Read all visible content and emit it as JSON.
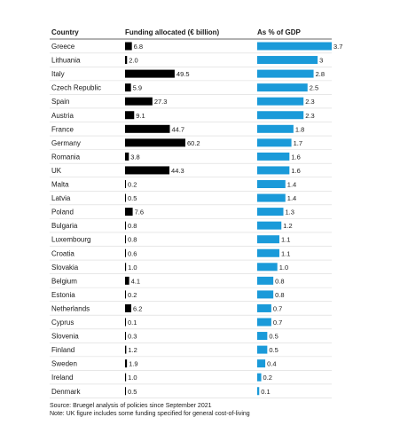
{
  "chart_data": {
    "type": "table",
    "columns": [
      "Country",
      "Funding allocated (€ billion)",
      "As % of GDP"
    ],
    "rows": [
      {
        "country": "Greece",
        "funding": 6.8,
        "funding_label": "6.8",
        "gdp": 3.7,
        "gdp_label": "3.7"
      },
      {
        "country": "Lithuania",
        "funding": 2.0,
        "funding_label": "2.0",
        "gdp": 3.0,
        "gdp_label": "3"
      },
      {
        "country": "Italy",
        "funding": 49.5,
        "funding_label": "49.5",
        "gdp": 2.8,
        "gdp_label": "2.8"
      },
      {
        "country": "Czech Republic",
        "funding": 5.9,
        "funding_label": "5.9",
        "gdp": 2.5,
        "gdp_label": "2.5"
      },
      {
        "country": "Spain",
        "funding": 27.3,
        "funding_label": "27.3",
        "gdp": 2.3,
        "gdp_label": "2.3"
      },
      {
        "country": "Austria",
        "funding": 9.1,
        "funding_label": "9.1",
        "gdp": 2.3,
        "gdp_label": "2.3"
      },
      {
        "country": "France",
        "funding": 44.7,
        "funding_label": "44.7",
        "gdp": 1.8,
        "gdp_label": "1.8"
      },
      {
        "country": "Germany",
        "funding": 60.2,
        "funding_label": "60.2",
        "gdp": 1.7,
        "gdp_label": "1.7"
      },
      {
        "country": "Romania",
        "funding": 3.8,
        "funding_label": "3.8",
        "gdp": 1.6,
        "gdp_label": "1.6"
      },
      {
        "country": "UK",
        "funding": 44.3,
        "funding_label": "44.3",
        "gdp": 1.6,
        "gdp_label": "1.6"
      },
      {
        "country": "Malta",
        "funding": 0.2,
        "funding_label": "0.2",
        "gdp": 1.4,
        "gdp_label": "1.4"
      },
      {
        "country": "Latvia",
        "funding": 0.5,
        "funding_label": "0.5",
        "gdp": 1.4,
        "gdp_label": "1.4"
      },
      {
        "country": "Poland",
        "funding": 7.6,
        "funding_label": "7.6",
        "gdp": 1.3,
        "gdp_label": "1.3"
      },
      {
        "country": "Bulgaria",
        "funding": 0.8,
        "funding_label": "0.8",
        "gdp": 1.2,
        "gdp_label": "1.2"
      },
      {
        "country": "Luxembourg",
        "funding": 0.8,
        "funding_label": "0.8",
        "gdp": 1.1,
        "gdp_label": "1.1"
      },
      {
        "country": "Croatia",
        "funding": 0.6,
        "funding_label": "0.6",
        "gdp": 1.1,
        "gdp_label": "1.1"
      },
      {
        "country": "Slovakia",
        "funding": 1.0,
        "funding_label": "1.0",
        "gdp": 1.0,
        "gdp_label": "1.0"
      },
      {
        "country": "Belgium",
        "funding": 4.1,
        "funding_label": "4.1",
        "gdp": 0.8,
        "gdp_label": "0.8"
      },
      {
        "country": "Estonia",
        "funding": 0.2,
        "funding_label": "0.2",
        "gdp": 0.8,
        "gdp_label": "0.8"
      },
      {
        "country": "Netherlands",
        "funding": 6.2,
        "funding_label": "6.2",
        "gdp": 0.7,
        "gdp_label": "0.7"
      },
      {
        "country": "Cyprus",
        "funding": 0.1,
        "funding_label": "0.1",
        "gdp": 0.7,
        "gdp_label": "0.7"
      },
      {
        "country": "Slovenia",
        "funding": 0.3,
        "funding_label": "0.3",
        "gdp": 0.5,
        "gdp_label": "0.5"
      },
      {
        "country": "Finland",
        "funding": 1.2,
        "funding_label": "1.2",
        "gdp": 0.5,
        "gdp_label": "0.5"
      },
      {
        "country": "Sweden",
        "funding": 1.9,
        "funding_label": "1.9",
        "gdp": 0.4,
        "gdp_label": "0.4"
      },
      {
        "country": "Ireland",
        "funding": 1.0,
        "funding_label": "1.0",
        "gdp": 0.2,
        "gdp_label": "0.2"
      },
      {
        "country": "Denmark",
        "funding": 0.5,
        "funding_label": "0.5",
        "gdp": 0.1,
        "gdp_label": "0.1"
      }
    ],
    "funding_range": [
      0,
      60.2
    ],
    "gdp_range": [
      0,
      3.7
    ],
    "colors": {
      "funding_bar": "#000000",
      "gdp_bar": "#1a9ad9",
      "gridline": "#d9d9d9",
      "header_rule": "#333333"
    }
  },
  "footnotes": {
    "source": "Source: Bruegel analysis of policies since September 2021",
    "note": "Note: UK figure includes some funding specified for general cost-of-living"
  }
}
